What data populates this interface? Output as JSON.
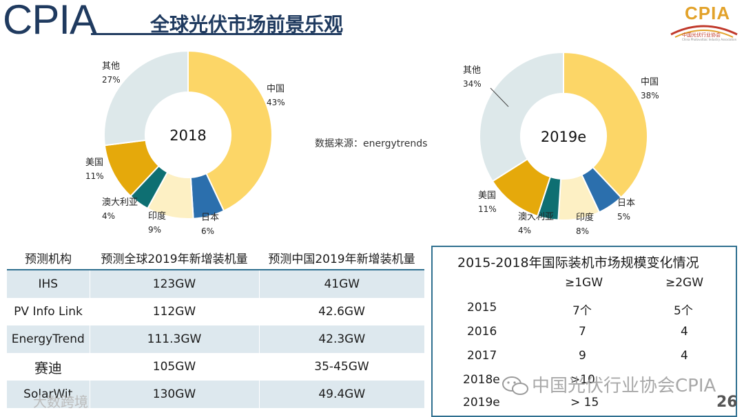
{
  "header": {
    "logo": "CPIA",
    "title": "全球光伏市场前景乐观",
    "org_logo_text": "CPIA",
    "org_name": "中国光伏行业协会",
    "org_name_en": "China Photovoltaic Industry Association"
  },
  "source_note": "数据来源：energytrends",
  "chart_data": [
    {
      "type": "pie",
      "title": "2018",
      "categories": [
        "中国",
        "日本",
        "印度",
        "澳大利亚",
        "美国",
        "其他"
      ],
      "values": [
        43,
        6,
        9,
        4,
        11,
        27
      ],
      "labels": [
        "43%",
        "6%",
        "9%",
        "4%",
        "11%",
        "27%"
      ],
      "colors": [
        "#fcd667",
        "#2b6fad",
        "#fdf0c4",
        "#0e6f72",
        "#e5a90b",
        "#dde8ea"
      ]
    },
    {
      "type": "pie",
      "title": "2019e",
      "categories": [
        "中国",
        "日本",
        "印度",
        "澳大利亚",
        "美国",
        "其他"
      ],
      "values": [
        38,
        5,
        8,
        4,
        11,
        34
      ],
      "labels": [
        "38%",
        "5%",
        "8%",
        "4%",
        "11%",
        "34%"
      ],
      "colors": [
        "#fcd667",
        "#2b6fad",
        "#fdf0c4",
        "#0e6f72",
        "#e5a90b",
        "#dde8ea"
      ]
    }
  ],
  "forecast_table": {
    "headers": [
      "预测机构",
      "预测全球2019年新增装机量",
      "预测中国2019年新增装机量"
    ],
    "rows": [
      [
        "IHS",
        "123GW",
        "41GW"
      ],
      [
        "PV Info Link",
        "112GW",
        "42.6GW"
      ],
      [
        "EnergyTrend",
        "111.3GW",
        "42.3GW"
      ],
      [
        "赛迪",
        "105GW",
        "35-45GW"
      ],
      [
        "SolarWit",
        "130GW",
        "49.4GW"
      ]
    ]
  },
  "market_table": {
    "title": "2015-2018年国际装机市场规模变化情况",
    "col1": "≥1GW",
    "col2": "≥2GW",
    "rows": [
      {
        "year": "2015",
        "a": "7个",
        "b": "5个"
      },
      {
        "year": "2016",
        "a": "7",
        "b": "4"
      },
      {
        "year": "2017",
        "a": "9",
        "b": "4"
      },
      {
        "year": "2018e",
        "a": ">10",
        "b": ""
      },
      {
        "year": "2019e",
        "a": "> 15",
        "b": ""
      }
    ]
  },
  "watermark": "中国光伏行业协会CPIA",
  "watermark2": "大数跨境",
  "page_number": "26"
}
